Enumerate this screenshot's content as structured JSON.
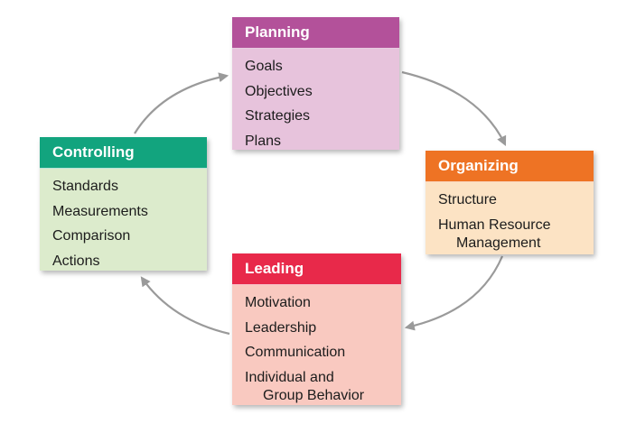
{
  "colors": {
    "planning_header": "#B3519A",
    "planning_body": "#E7C3DC",
    "organizing_header": "#EE7324",
    "organizing_body": "#FCE3C4",
    "leading_header": "#E8294A",
    "leading_body": "#F9C9C0",
    "controlling_header": "#12A47E",
    "controlling_body": "#DCEBCC",
    "arrow": "#9A9A9A"
  },
  "functions": {
    "planning": {
      "title": "Planning",
      "items": [
        "Goals",
        "Objectives",
        "Strategies",
        "Plans"
      ]
    },
    "organizing": {
      "title": "Organizing",
      "items": [
        "Structure"
      ],
      "wrap_item": [
        "Human Resource",
        "Management"
      ]
    },
    "leading": {
      "title": "Leading",
      "items": [
        "Motivation",
        "Leadership",
        "Communication"
      ],
      "wrap_item": [
        "Individual and",
        "Group Behavior"
      ]
    },
    "controlling": {
      "title": "Controlling",
      "items": [
        "Standards",
        "Measurements",
        "Comparison",
        "Actions"
      ]
    }
  }
}
